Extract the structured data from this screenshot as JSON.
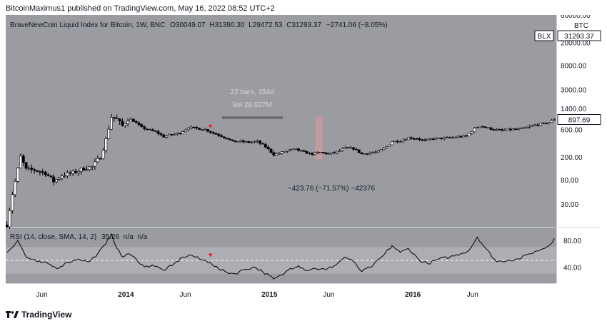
{
  "header": {
    "published": "BitcoinMaximus1 published on TradingView.com, May 16, 2022 08:52 UTC+2"
  },
  "legend": {
    "symbol": "BraveNewCoin Liquid Index for Bitcoin, 1W, BNC",
    "o_label": "O",
    "o": "30049.07",
    "h_label": "H",
    "h": "31390.30",
    "l_label": "L",
    "l": "29472.53",
    "c_label": "C",
    "c": "31293.37",
    "change": "−2741.06 (−8.05%)"
  },
  "price_axis": {
    "labels": [
      "60000.00",
      "20000.00",
      "8000.00",
      "3000.00",
      "1400.00",
      "600.00",
      "200.00",
      "80.00",
      "30.00"
    ],
    "currency": "BTC",
    "blx_tag": "BLX",
    "blx_value": "31293.37",
    "last_value": "897.69"
  },
  "measure": {
    "bars": "22 bars, 154d",
    "vol": "Vol 26.027M",
    "result": "−423.76 (−71.57%) −42376"
  },
  "rsi": {
    "label": "RSI (14, close, SMA, 14, 2)",
    "value": "35.26",
    "na1": "n/a",
    "na2": "n/a",
    "axis": [
      "80.00",
      "40.00"
    ],
    "upper": 70,
    "lower": 30,
    "mid": 50
  },
  "time_axis": {
    "labels": [
      "Jun",
      "2014",
      "Jun",
      "2015",
      "Jun",
      "2016",
      "Jun"
    ]
  },
  "footer": {
    "brand": "TradingView"
  },
  "colors": {
    "background": "#9b9ca1",
    "up": "#ffffff",
    "down": "#000000",
    "marker": "#e8222b",
    "rsi_band": "#adaeb3",
    "measure_box": "#c99aa0"
  },
  "chart_data": {
    "type": "candlestick",
    "title": "BraveNewCoin Liquid Index for Bitcoin, 1W, BNC",
    "scale": "log",
    "ylim": [
      12,
      60000
    ],
    "x_start": "2013-03",
    "x_end": "2016-12",
    "x_ticks": [
      "2013-06",
      "2014-01",
      "2014-06",
      "2015-01",
      "2015-06",
      "2016-01",
      "2016-06"
    ],
    "close_path": [
      [
        "2013-03-04",
        13
      ],
      [
        "2013-03-18",
        45
      ],
      [
        "2013-04-08",
        200
      ],
      [
        "2013-04-22",
        120
      ],
      [
        "2013-05-13",
        118
      ],
      [
        "2013-06-10",
        105
      ],
      [
        "2013-07-01",
        75
      ],
      [
        "2013-07-22",
        95
      ],
      [
        "2013-08-19",
        105
      ],
      [
        "2013-09-16",
        125
      ],
      [
        "2013-10-07",
        135
      ],
      [
        "2013-10-28",
        200
      ],
      [
        "2013-11-11",
        400
      ],
      [
        "2013-11-25",
        1000
      ],
      [
        "2013-12-09",
        900
      ],
      [
        "2013-12-23",
        700
      ],
      [
        "2014-01-06",
        900
      ],
      [
        "2014-01-20",
        850
      ],
      [
        "2014-02-10",
        650
      ],
      [
        "2014-02-24",
        600
      ],
      [
        "2014-03-17",
        550
      ],
      [
        "2014-04-07",
        450
      ],
      [
        "2014-04-21",
        480
      ],
      [
        "2014-05-19",
        520
      ],
      [
        "2014-06-09",
        650
      ],
      [
        "2014-06-30",
        630
      ],
      [
        "2014-07-21",
        600
      ],
      [
        "2014-08-11",
        520
      ],
      [
        "2014-08-25",
        480
      ],
      [
        "2014-09-15",
        420
      ],
      [
        "2014-09-29",
        370
      ],
      [
        "2014-10-20",
        370
      ],
      [
        "2014-11-10",
        360
      ],
      [
        "2014-12-01",
        370
      ],
      [
        "2014-12-22",
        300
      ],
      [
        "2015-01-12",
        220
      ],
      [
        "2015-01-26",
        230
      ],
      [
        "2015-02-16",
        260
      ],
      [
        "2015-03-09",
        270
      ],
      [
        "2015-03-30",
        240
      ],
      [
        "2015-04-20",
        225
      ],
      [
        "2015-05-11",
        240
      ],
      [
        "2015-06-01",
        225
      ],
      [
        "2015-06-22",
        245
      ],
      [
        "2015-07-13",
        285
      ],
      [
        "2015-08-03",
        280
      ],
      [
        "2015-08-24",
        225
      ],
      [
        "2015-09-14",
        235
      ],
      [
        "2015-10-05",
        245
      ],
      [
        "2015-10-26",
        300
      ],
      [
        "2015-11-09",
        370
      ],
      [
        "2015-11-30",
        380
      ],
      [
        "2015-12-21",
        430
      ],
      [
        "2016-01-11",
        420
      ],
      [
        "2016-02-01",
        380
      ],
      [
        "2016-02-22",
        420
      ],
      [
        "2016-03-14",
        420
      ],
      [
        "2016-04-04",
        430
      ],
      [
        "2016-04-25",
        450
      ],
      [
        "2016-05-16",
        460
      ],
      [
        "2016-06-06",
        620
      ],
      [
        "2016-06-20",
        700
      ],
      [
        "2016-07-04",
        650
      ],
      [
        "2016-07-25",
        600
      ],
      [
        "2016-08-15",
        580
      ],
      [
        "2016-09-05",
        600
      ],
      [
        "2016-09-26",
        610
      ],
      [
        "2016-10-17",
        650
      ],
      [
        "2016-11-07",
        720
      ],
      [
        "2016-11-28",
        760
      ],
      [
        "2016-12-12",
        800
      ],
      [
        "2016-12-26",
        898
      ]
    ],
    "measure": {
      "start": "2014-12-29",
      "end": "2015-06-01",
      "change": -423.76,
      "change_pct": -71.57
    },
    "markers": [
      {
        "date": "2014-08-04",
        "panel": "price"
      },
      {
        "date": "2014-08-04",
        "panel": "rsi"
      }
    ],
    "rsi_path": [
      [
        "2013-03-04",
        62
      ],
      [
        "2013-04-01",
        80
      ],
      [
        "2013-04-22",
        55
      ],
      [
        "2013-05-20",
        48
      ],
      [
        "2013-06-17",
        45
      ],
      [
        "2013-07-08",
        38
      ],
      [
        "2013-08-05",
        47
      ],
      [
        "2013-09-02",
        52
      ],
      [
        "2013-09-30",
        48
      ],
      [
        "2013-10-21",
        60
      ],
      [
        "2013-11-11",
        75
      ],
      [
        "2013-11-25",
        90
      ],
      [
        "2013-12-09",
        68
      ],
      [
        "2013-12-23",
        55
      ],
      [
        "2014-01-06",
        60
      ],
      [
        "2014-01-27",
        52
      ],
      [
        "2014-02-17",
        40
      ],
      [
        "2014-03-10",
        43
      ],
      [
        "2014-04-07",
        35
      ],
      [
        "2014-04-28",
        42
      ],
      [
        "2014-05-26",
        55
      ],
      [
        "2014-06-16",
        58
      ],
      [
        "2014-07-07",
        52
      ],
      [
        "2014-08-04",
        47
      ],
      [
        "2014-08-25",
        37
      ],
      [
        "2014-09-15",
        32
      ],
      [
        "2014-10-06",
        30
      ],
      [
        "2014-10-27",
        36
      ],
      [
        "2014-11-24",
        40
      ],
      [
        "2014-12-15",
        33
      ],
      [
        "2015-01-12",
        22
      ],
      [
        "2015-02-02",
        28
      ],
      [
        "2015-02-23",
        38
      ],
      [
        "2015-03-16",
        42
      ],
      [
        "2015-04-06",
        35
      ],
      [
        "2015-04-27",
        38
      ],
      [
        "2015-05-25",
        36
      ],
      [
        "2015-06-15",
        42
      ],
      [
        "2015-07-13",
        55
      ],
      [
        "2015-08-03",
        48
      ],
      [
        "2015-08-24",
        33
      ],
      [
        "2015-09-21",
        42
      ],
      [
        "2015-10-19",
        58
      ],
      [
        "2015-11-09",
        72
      ],
      [
        "2015-11-30",
        62
      ],
      [
        "2015-12-21",
        68
      ],
      [
        "2016-01-18",
        50
      ],
      [
        "2016-02-08",
        45
      ],
      [
        "2016-03-07",
        52
      ],
      [
        "2016-04-04",
        55
      ],
      [
        "2016-05-02",
        60
      ],
      [
        "2016-05-23",
        65
      ],
      [
        "2016-06-13",
        85
      ],
      [
        "2016-07-04",
        68
      ],
      [
        "2016-08-01",
        48
      ],
      [
        "2016-08-29",
        50
      ],
      [
        "2016-09-26",
        52
      ],
      [
        "2016-10-24",
        60
      ],
      [
        "2016-11-21",
        66
      ],
      [
        "2016-12-12",
        72
      ],
      [
        "2016-12-26",
        83
      ]
    ]
  }
}
